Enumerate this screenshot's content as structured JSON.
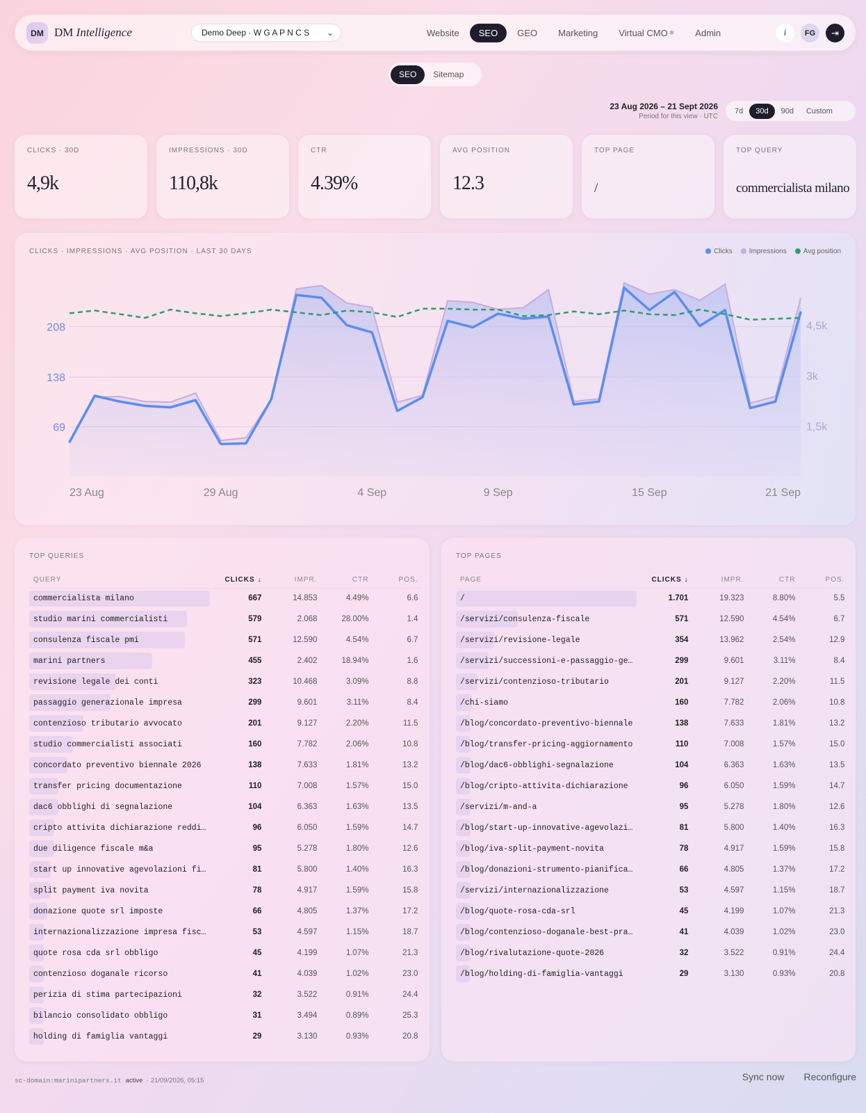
{
  "app": {
    "logo_badge": "DM",
    "logo_name": "DM",
    "logo_italic": "Intelligence"
  },
  "project": {
    "name": "Demo Deep · W G A P N C S"
  },
  "nav": [
    {
      "label": "Website"
    },
    {
      "label": "SEO",
      "active": true
    },
    {
      "label": "GEO"
    },
    {
      "label": "Marketing"
    },
    {
      "label": "Virtual CMO"
    },
    {
      "label": "Admin"
    }
  ],
  "topbar": {
    "info": "i",
    "avatar": "FG"
  },
  "subtabs": [
    {
      "label": "SEO",
      "active": true
    },
    {
      "label": "Sitemap"
    }
  ],
  "period": {
    "range": "23 Aug 2026 – 21 Sept 2026",
    "note": "Period for this view · UTC"
  },
  "range_buttons": [
    {
      "label": "7d"
    },
    {
      "label": "30d",
      "active": true
    },
    {
      "label": "90d"
    },
    {
      "label": "Custom"
    }
  ],
  "kpis": [
    {
      "label": "CLICKS · 30D",
      "value": "4,9k"
    },
    {
      "label": "IMPRESSIONS · 30D",
      "value": "110,8k"
    },
    {
      "label": "CTR",
      "value": "4.39%"
    },
    {
      "label": "AVG POSITION",
      "value": "12.3"
    },
    {
      "label": "TOP PAGE",
      "value": "/"
    },
    {
      "label": "TOP QUERY",
      "value": "commercialista milano"
    }
  ],
  "chart_title": "CLICKS · IMPRESSIONS · AVG POSITION · LAST 30 DAYS",
  "chart_data": {
    "type": "line",
    "x": [
      "23 Aug",
      "24 Aug",
      "25 Aug",
      "26 Aug",
      "27 Aug",
      "28 Aug",
      "29 Aug",
      "30 Aug",
      "31 Aug",
      "1 Sep",
      "2 Sep",
      "3 Sep",
      "4 Sep",
      "5 Sep",
      "6 Sep",
      "7 Sep",
      "8 Sep",
      "9 Sep",
      "10 Sep",
      "11 Sep",
      "12 Sep",
      "13 Sep",
      "14 Sep",
      "15 Sep",
      "16 Sep",
      "17 Sep",
      "18 Sep",
      "19 Sep",
      "20 Sep",
      "21 Sep"
    ],
    "x_ticks": [
      "23 Aug",
      "29 Aug",
      "4 Sep",
      "9 Sep",
      "15 Sep",
      "21 Sep"
    ],
    "left_ticks": [
      {
        "v": 69,
        "label": "69"
      },
      {
        "v": 138,
        "label": "138"
      },
      {
        "v": 208,
        "label": "208"
      }
    ],
    "right_ticks": [
      {
        "v": 1500,
        "label": "1,5k"
      },
      {
        "v": 3000,
        "label": "3k"
      },
      {
        "v": 4500,
        "label": "4,5k"
      }
    ],
    "clicks_ylim": [
      0,
      280
    ],
    "impressions_ylim": [
      0,
      6000
    ],
    "position_ylim": [
      8,
      30
    ],
    "legend_position": "top-right",
    "series": [
      {
        "name": "Clicks",
        "axis": "left",
        "color": "#5b8def",
        "values": [
          48,
          112,
          104,
          98,
          96,
          106,
          45,
          46,
          107,
          252,
          248,
          210,
          200,
          91,
          110,
          216,
          207,
          226,
          219,
          222,
          100,
          104,
          262,
          231,
          256,
          209,
          231,
          95,
          104,
          228
        ]
      },
      {
        "name": "Impressions",
        "axis": "right",
        "color": "#c8acdf",
        "values": [
          990,
          2360,
          2380,
          2230,
          2210,
          2480,
          1070,
          1150,
          2290,
          5580,
          5680,
          5160,
          5030,
          2210,
          2410,
          5230,
          5180,
          4970,
          5020,
          5560,
          2230,
          2310,
          5760,
          5420,
          5560,
          5240,
          5720,
          2180,
          2380,
          5310
        ]
      },
      {
        "name": "Avg position",
        "axis": "hidden",
        "color": "#2e9d6e",
        "values": [
          12.2,
          11.9,
          12.3,
          12.7,
          11.8,
          12.2,
          12.5,
          12.2,
          11.8,
          12.1,
          12.4,
          11.9,
          12.1,
          12.6,
          11.7,
          11.7,
          11.8,
          11.8,
          12.5,
          12.4,
          12.0,
          12.3,
          11.9,
          12.3,
          12.4,
          11.8,
          12.3,
          12.9,
          12.8,
          12.7
        ]
      }
    ]
  },
  "queries": {
    "title": "TOP QUERIES",
    "headers": [
      "QUERY",
      "CLICKS ↓",
      "IMPR.",
      "CTR",
      "POS."
    ],
    "rows": [
      [
        "commercialista milano",
        "667",
        "14.853",
        "4.49%",
        "6.6"
      ],
      [
        "studio marini commercialisti",
        "579",
        "2.068",
        "28.00%",
        "1.4"
      ],
      [
        "consulenza fiscale pmi",
        "571",
        "12.590",
        "4.54%",
        "6.7"
      ],
      [
        "marini partners",
        "455",
        "2.402",
        "18.94%",
        "1.6"
      ],
      [
        "revisione legale dei conti",
        "323",
        "10.468",
        "3.09%",
        "8.8"
      ],
      [
        "passaggio generazionale impresa",
        "299",
        "9.601",
        "3.11%",
        "8.4"
      ],
      [
        "contenzioso tributario avvocato",
        "201",
        "9.127",
        "2.20%",
        "11.5"
      ],
      [
        "studio commercialisti associati",
        "160",
        "7.782",
        "2.06%",
        "10.8"
      ],
      [
        "concordato preventivo biennale 2026",
        "138",
        "7.633",
        "1.81%",
        "13.2"
      ],
      [
        "transfer pricing documentazione",
        "110",
        "7.008",
        "1.57%",
        "15.0"
      ],
      [
        "dac6 obblighi di segnalazione",
        "104",
        "6.363",
        "1.63%",
        "13.5"
      ],
      [
        "cripto attivita dichiarazione reddi…",
        "96",
        "6.050",
        "1.59%",
        "14.7"
      ],
      [
        "due diligence fiscale m&a",
        "95",
        "5.278",
        "1.80%",
        "12.6"
      ],
      [
        "start up innovative agevolazioni fi…",
        "81",
        "5.800",
        "1.40%",
        "16.3"
      ],
      [
        "split payment iva novita",
        "78",
        "4.917",
        "1.59%",
        "15.8"
      ],
      [
        "donazione quote srl imposte",
        "66",
        "4.805",
        "1.37%",
        "17.2"
      ],
      [
        "internazionalizzazione impresa fisc…",
        "53",
        "4.597",
        "1.15%",
        "18.7"
      ],
      [
        "quote rosa cda srl obbligo",
        "45",
        "4.199",
        "1.07%",
        "21.3"
      ],
      [
        "contenzioso doganale ricorso",
        "41",
        "4.039",
        "1.02%",
        "23.0"
      ],
      [
        "perizia di stima partecipazioni",
        "32",
        "3.522",
        "0.91%",
        "24.4"
      ],
      [
        "bilancio consolidato obbligo",
        "31",
        "3.494",
        "0.89%",
        "25.3"
      ],
      [
        "holding di famiglia vantaggi",
        "29",
        "3.130",
        "0.93%",
        "20.8"
      ]
    ]
  },
  "pages": {
    "title": "TOP PAGES",
    "headers": [
      "PAGE",
      "CLICKS ↓",
      "IMPR.",
      "CTR",
      "POS."
    ],
    "rows": [
      [
        "/",
        "1.701",
        "19.323",
        "8.80%",
        "5.5"
      ],
      [
        "/servizi/consulenza-fiscale",
        "571",
        "12.590",
        "4.54%",
        "6.7"
      ],
      [
        "/servizi/revisione-legale",
        "354",
        "13.962",
        "2.54%",
        "12.9"
      ],
      [
        "/servizi/successioni-e-passaggio-ge…",
        "299",
        "9.601",
        "3.11%",
        "8.4"
      ],
      [
        "/servizi/contenzioso-tributario",
        "201",
        "9.127",
        "2.20%",
        "11.5"
      ],
      [
        "/chi-siamo",
        "160",
        "7.782",
        "2.06%",
        "10.8"
      ],
      [
        "/blog/concordato-preventivo-biennale",
        "138",
        "7.633",
        "1.81%",
        "13.2"
      ],
      [
        "/blog/transfer-pricing-aggiornamento",
        "110",
        "7.008",
        "1.57%",
        "15.0"
      ],
      [
        "/blog/dac6-obblighi-segnalazione",
        "104",
        "6.363",
        "1.63%",
        "13.5"
      ],
      [
        "/blog/cripto-attivita-dichiarazione",
        "96",
        "6.050",
        "1.59%",
        "14.7"
      ],
      [
        "/servizi/m-and-a",
        "95",
        "5.278",
        "1.80%",
        "12.6"
      ],
      [
        "/blog/start-up-innovative-agevolazi…",
        "81",
        "5.800",
        "1.40%",
        "16.3"
      ],
      [
        "/blog/iva-split-payment-novita",
        "78",
        "4.917",
        "1.59%",
        "15.8"
      ],
      [
        "/blog/donazioni-strumento-pianifica…",
        "66",
        "4.805",
        "1.37%",
        "17.2"
      ],
      [
        "/servizi/internazionalizzazione",
        "53",
        "4.597",
        "1.15%",
        "18.7"
      ],
      [
        "/blog/quote-rosa-cda-srl",
        "45",
        "4.199",
        "1.07%",
        "21.3"
      ],
      [
        "/blog/contenzioso-doganale-best-pra…",
        "41",
        "4.039",
        "1.02%",
        "23.0"
      ],
      [
        "/blog/rivalutazione-quote-2026",
        "32",
        "3.522",
        "0.91%",
        "24.4"
      ],
      [
        "/blog/holding-di-famiglia-vantaggi",
        "29",
        "3.130",
        "0.93%",
        "20.8"
      ]
    ]
  },
  "footer": {
    "domain": "sc-domain:marinipartners.it",
    "status": "active",
    "updated": "· 21/09/2026, 05:15",
    "sync": "Sync now",
    "reconfigure": "Reconfigure"
  },
  "colors": {
    "dark": "#1f1d2c",
    "clicks": "#5b8def",
    "impressions": "#c8acdf",
    "position": "#2e9d6e"
  }
}
